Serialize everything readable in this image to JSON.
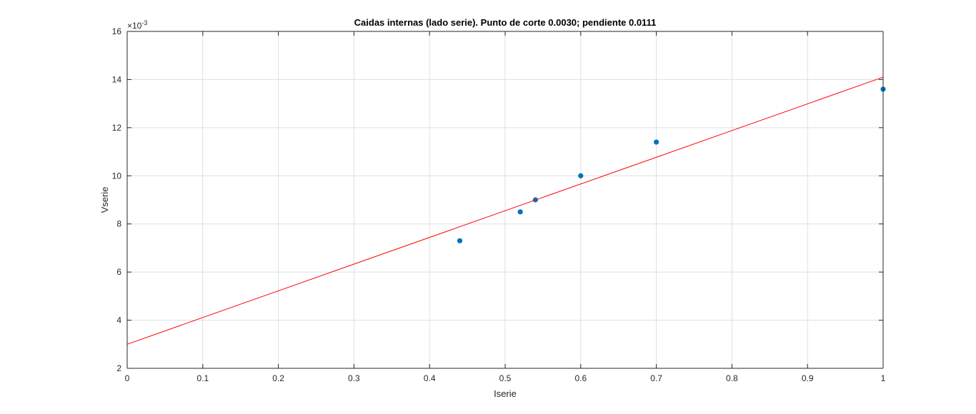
{
  "chart_data": {
    "type": "scatter",
    "title": "Caidas internas (lado serie). Punto de corte 0.0030; pendiente 0.0111",
    "xlabel": "Iserie",
    "ylabel": "Vserie",
    "y_exponent_label": "×10",
    "y_exponent_power": "-3",
    "xlim": [
      0,
      1
    ],
    "ylim": [
      2,
      16
    ],
    "y_scale_note": "values shown are ×10^-3",
    "xticks": [
      "0",
      "0.1",
      "0.2",
      "0.3",
      "0.4",
      "0.5",
      "0.6",
      "0.7",
      "0.8",
      "0.9",
      "1"
    ],
    "yticks": [
      "2",
      "4",
      "6",
      "8",
      "10",
      "12",
      "14",
      "16"
    ],
    "grid": true,
    "series": [
      {
        "kind": "scatter",
        "color": "#0072BD",
        "x": [
          0.44,
          0.52,
          0.54,
          0.6,
          0.7,
          1.0
        ],
        "y": [
          7.3,
          8.5,
          9.0,
          10.0,
          11.4,
          13.6
        ]
      },
      {
        "kind": "line",
        "color": "#FF0000",
        "x": [
          0,
          1
        ],
        "y": [
          3.0,
          14.1
        ]
      }
    ]
  }
}
